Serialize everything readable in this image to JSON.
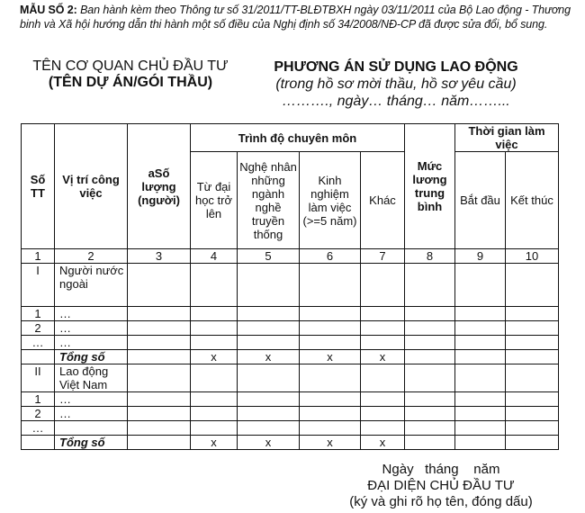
{
  "intro": {
    "label": "MẪU SỐ 2:",
    "text": "Ban hành kèm theo Thông tư số 31/2011/TT-BLĐTBXH ngày 03/11/2011 của Bộ Lao động - Thương binh và Xã hội hướng dẫn thi hành một số điều của Nghị định số 34/2008/NĐ-CP đã được sửa đổi, bổ sung."
  },
  "left_heading": {
    "line1": "TÊN CƠ QUAN CHỦ ĐẦU TƯ",
    "line2": "(TÊN DỰ ÁN/GÓI THẦU)"
  },
  "right_heading": {
    "title": "PHƯƠNG ÁN SỬ DỤNG LAO ĐỘNG",
    "subtitle": "(trong hồ sơ mời thầu, hồ sơ yêu cầu)",
    "date_line": "………., ngày… tháng… năm……..."
  },
  "table": {
    "headers": {
      "stt": "Số TT",
      "position": "Vị trí công việc",
      "quantity": "aSố lượng (người)",
      "qualification": "Trình độ chuyên môn",
      "university": "Từ đại học trở lên",
      "artisan": "Nghệ nhân những ngành nghề truyền thống",
      "experience": "Kinh nghiệm làm việc (>=5 năm)",
      "other": "Khác",
      "salary": "Mức lương trung bình",
      "working_time": "Thời gian làm việc",
      "start": "Bắt đầu",
      "end": "Kết thúc"
    },
    "column_numbers": [
      "1",
      "2",
      "3",
      "4",
      "5",
      "6",
      "7",
      "8",
      "9",
      "10"
    ],
    "rows": [
      {
        "stt": "I",
        "position": "Người nước ngoài",
        "marks": [
          "",
          "",
          "",
          "",
          "",
          "",
          "",
          ""
        ]
      },
      {
        "stt": "1",
        "position": "…",
        "marks": [
          "",
          "",
          "",
          "",
          "",
          "",
          "",
          ""
        ]
      },
      {
        "stt": "2",
        "position": "…",
        "marks": [
          "",
          "",
          "",
          "",
          "",
          "",
          "",
          ""
        ]
      },
      {
        "stt": "…",
        "position": "…",
        "marks": [
          "",
          "",
          "",
          "",
          "",
          "",
          "",
          ""
        ]
      },
      {
        "stt": "",
        "position": "Tổng số",
        "total": true,
        "marks": [
          "",
          "x",
          "x",
          "x",
          "x",
          "",
          "",
          ""
        ]
      },
      {
        "stt": "II",
        "position": "Lao động Việt Nam",
        "marks": [
          "",
          "",
          "",
          "",
          "",
          "",
          "",
          ""
        ]
      },
      {
        "stt": "1",
        "position": "…",
        "marks": [
          "",
          "",
          "",
          "",
          "",
          "",
          "",
          ""
        ]
      },
      {
        "stt": "2",
        "position": "…",
        "marks": [
          "",
          "",
          "",
          "",
          "",
          "",
          "",
          ""
        ]
      },
      {
        "stt": "…",
        "position": "",
        "marks": [
          "",
          "",
          "",
          "",
          "",
          "",
          "",
          ""
        ]
      },
      {
        "stt": "",
        "position": "Tổng số",
        "total": true,
        "marks": [
          "",
          "x",
          "x",
          "x",
          "x",
          "",
          "",
          ""
        ]
      }
    ]
  },
  "footer": {
    "date": "Ngày   tháng    năm",
    "title": "ĐẠI DIỆN CHỦ ĐẦU TƯ",
    "note": "(ký và ghi rõ họ tên, đóng dấu)"
  }
}
